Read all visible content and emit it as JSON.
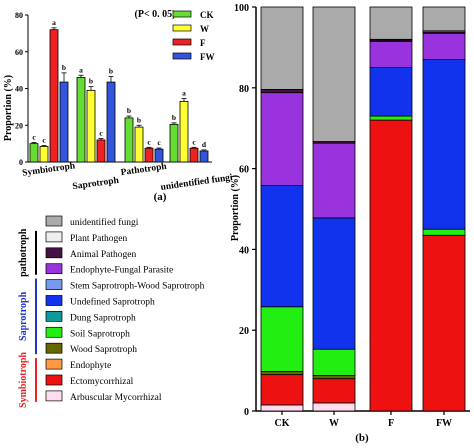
{
  "colors": {
    "CK": "#66dd33",
    "W": "#ffff33",
    "F": "#ee2222",
    "FW": "#3355dd"
  },
  "chart_data": [
    {
      "type": "bar",
      "panel_label": "(a)",
      "annotation": "(P< 0. 05)",
      "ylabel": "Proportion (%)",
      "ylim": [
        0,
        80
      ],
      "yticks": [
        0,
        20,
        40,
        60,
        80
      ],
      "grid": false,
      "legend_placement": "top-right",
      "categories": [
        "Symbiotroph",
        "Saprotroph",
        "Pathotroph",
        "unidentified fungi"
      ],
      "series": [
        {
          "name": "CK",
          "values": [
            10,
            46,
            24,
            20.5
          ],
          "errors": [
            0.6,
            1.2,
            1.0,
            0.8
          ],
          "letters": [
            "c",
            "a",
            "b",
            "b"
          ]
        },
        {
          "name": "W",
          "values": [
            8.5,
            39,
            19,
            33
          ],
          "errors": [
            0.5,
            2.0,
            1.0,
            1.5
          ],
          "letters": [
            "c",
            "b",
            "b",
            "a"
          ]
        },
        {
          "name": "F",
          "values": [
            72,
            12,
            7.5,
            7.5
          ],
          "errors": [
            1.0,
            0.8,
            0.5,
            0.5
          ],
          "letters": [
            "a",
            "c",
            "c",
            "c"
          ]
        },
        {
          "name": "FW",
          "values": [
            43.5,
            43.5,
            7,
            6
          ],
          "errors": [
            5.0,
            3.0,
            0.6,
            0.6
          ],
          "letters": [
            "b",
            "b",
            "c",
            "d"
          ]
        }
      ]
    },
    {
      "type": "bar",
      "stacked": true,
      "panel_label": "(b)",
      "ylabel": "Proportion (%)",
      "ylim": [
        0,
        100
      ],
      "yticks": [
        0,
        20,
        40,
        60,
        80,
        100
      ],
      "grid": false,
      "categories": [
        "CK",
        "W",
        "F",
        "FW"
      ],
      "groups": [
        {
          "name": "Symbiotroph",
          "color": "#ee2222",
          "members": [
            "Endophyte",
            "Ectomycorrhizal",
            "Arbuscular Mycorrhizal"
          ]
        },
        {
          "name": "Saprotroph",
          "color": "#2233cc",
          "members": [
            "Stem Saprotroph-Wood Saprotroph",
            "Undefined Saprotroph",
            "Dung Saprotroph",
            "Soil Saprotroph",
            "Wood Saprotroph"
          ]
        },
        {
          "name": "pathotroph",
          "color": "#000000",
          "members": [
            "Plant Pathogen",
            "Animal Pathogen",
            "Endophyte-Fungal Parasite"
          ]
        }
      ],
      "legend": [
        {
          "name": "unidentified fungi",
          "color": "#aaaaaa"
        },
        {
          "name": "Plant Pathogen",
          "color": "#eeeeee"
        },
        {
          "name": "Animal Pathogen",
          "color": "#441144"
        },
        {
          "name": "Endophyte-Fungal Parasite",
          "color": "#9933dd"
        },
        {
          "name": "Stem Saprotroph-Wood Saprotroph",
          "color": "#7799ee"
        },
        {
          "name": "Undefined Saprotroph",
          "color": "#1133ee"
        },
        {
          "name": "Dung Saprotroph",
          "color": "#119999"
        },
        {
          "name": "Soil Saprotroph",
          "color": "#22ee11"
        },
        {
          "name": "Wood Saprotroph",
          "color": "#666600"
        },
        {
          "name": "Endophyte",
          "color": "#ff9944"
        },
        {
          "name": "Ectomycorrhizal",
          "color": "#ee1111"
        },
        {
          "name": "Arbuscular Mycorrhizal",
          "color": "#ffddee"
        }
      ],
      "series": [
        {
          "name": "Arbuscular Mycorrhizal",
          "color": "#ffddee",
          "values": [
            1.5,
            2.0,
            0,
            0
          ]
        },
        {
          "name": "Ectomycorrhizal",
          "color": "#ee1111",
          "values": [
            7.5,
            6.0,
            72.0,
            43.5
          ]
        },
        {
          "name": "Endophyte",
          "color": "#ff9944",
          "values": [
            0,
            0,
            0,
            0
          ]
        },
        {
          "name": "Wood Saprotroph",
          "color": "#666600",
          "values": [
            0.8,
            0.8,
            0,
            0
          ]
        },
        {
          "name": "Soil Saprotroph",
          "color": "#22ee11",
          "values": [
            16.0,
            6.5,
            1.0,
            1.5
          ]
        },
        {
          "name": "Dung Saprotroph",
          "color": "#119999",
          "values": [
            0,
            0,
            0,
            0
          ]
        },
        {
          "name": "Undefined Saprotroph",
          "color": "#1133ee",
          "values": [
            30.0,
            32.5,
            12.0,
            42.0
          ]
        },
        {
          "name": "Stem Saprotroph-Wood Saprotroph",
          "color": "#7799ee",
          "values": [
            0,
            0,
            0,
            0
          ]
        },
        {
          "name": "Endophyte-Fungal Parasite",
          "color": "#9933dd",
          "values": [
            23.0,
            18.5,
            6.5,
            6.5
          ]
        },
        {
          "name": "Animal Pathogen",
          "color": "#441144",
          "values": [
            0.8,
            0.4,
            0.3,
            0.3
          ]
        },
        {
          "name": "Plant Pathogen",
          "color": "#eeeeee",
          "values": [
            0,
            0,
            0.2,
            0.3
          ]
        },
        {
          "name": "unidentified fungi",
          "color": "#aaaaaa",
          "values": [
            20.4,
            33.3,
            8.0,
            5.9
          ]
        }
      ]
    }
  ]
}
